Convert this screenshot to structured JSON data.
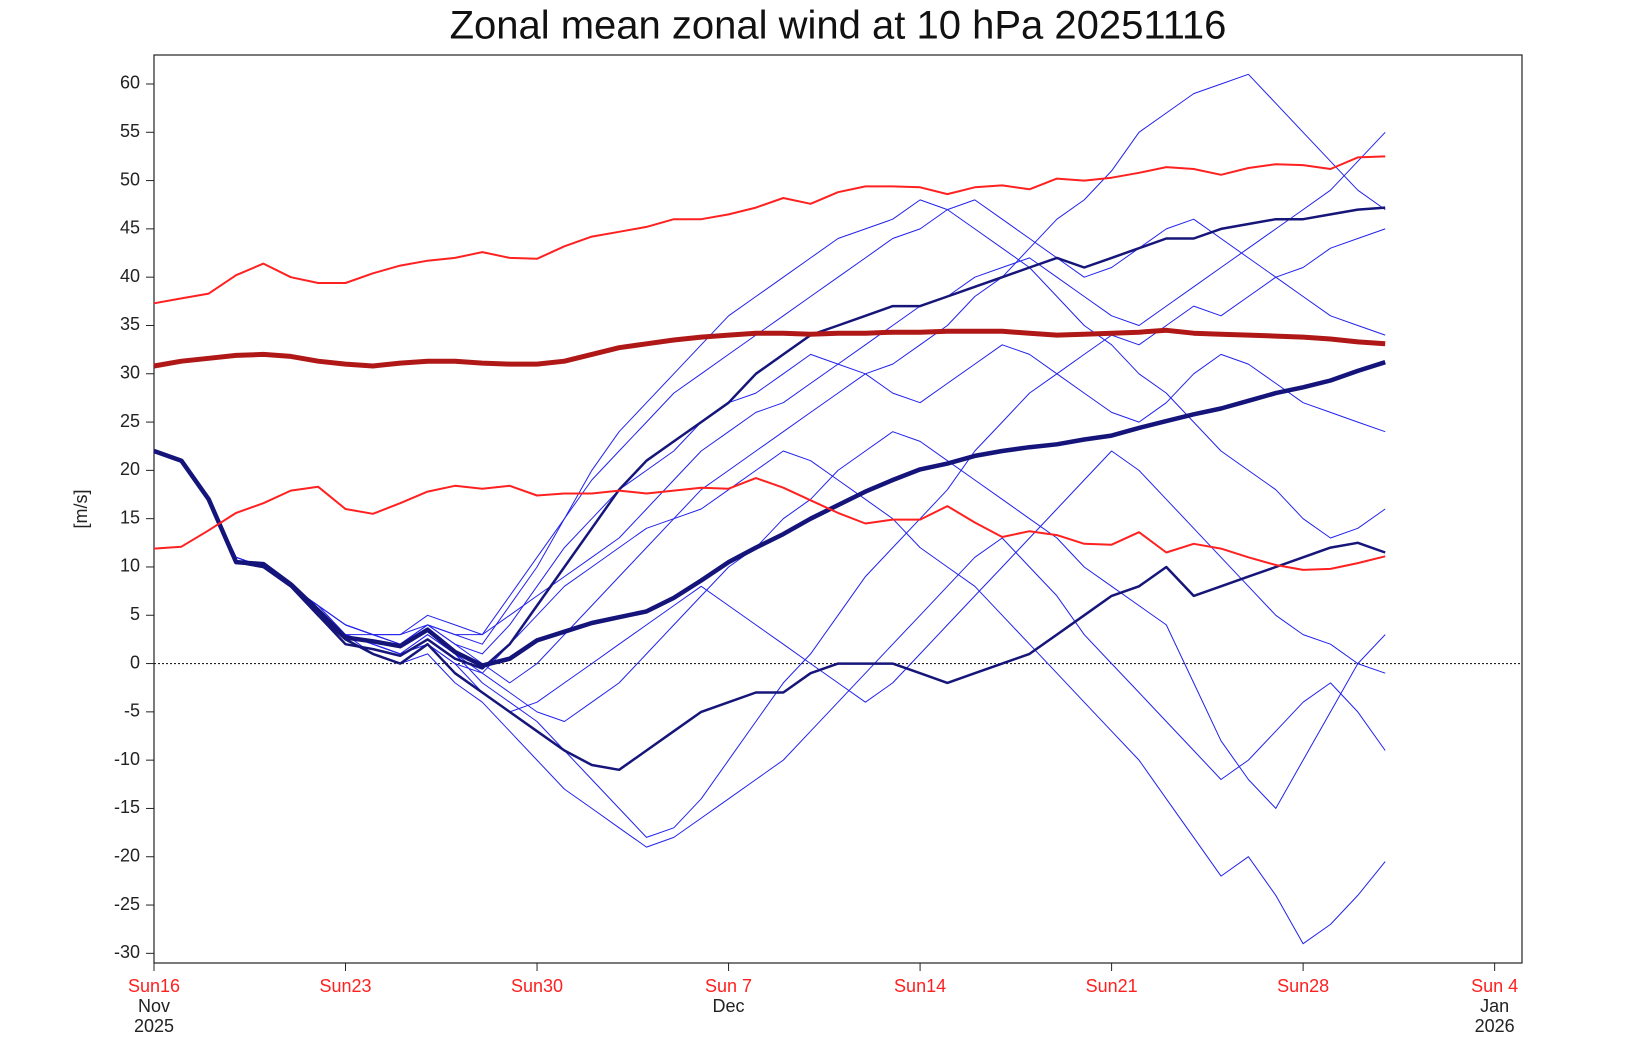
{
  "chart_data": {
    "type": "line",
    "title": "Zonal mean zonal wind at 10 hPa 20251116",
    "y_label": "[m/s]",
    "x": [
      "2025-11-16",
      "2025-11-17",
      "2025-11-18",
      "2025-11-19",
      "2025-11-20",
      "2025-11-21",
      "2025-11-22",
      "2025-11-23",
      "2025-11-24",
      "2025-11-25",
      "2025-11-26",
      "2025-11-27",
      "2025-11-28",
      "2025-11-29",
      "2025-11-30",
      "2025-12-01",
      "2025-12-02",
      "2025-12-03",
      "2025-12-04",
      "2025-12-05",
      "2025-12-06",
      "2025-12-07",
      "2025-12-08",
      "2025-12-09",
      "2025-12-10",
      "2025-12-11",
      "2025-12-12",
      "2025-12-13",
      "2025-12-14",
      "2025-12-15",
      "2025-12-16",
      "2025-12-17",
      "2025-12-18",
      "2025-12-19",
      "2025-12-20",
      "2025-12-21",
      "2025-12-22",
      "2025-12-23",
      "2025-12-24",
      "2025-12-25",
      "2025-12-26",
      "2025-12-27",
      "2025-12-28",
      "2025-12-29",
      "2025-12-30",
      "2025-12-31"
    ],
    "xlim": [
      "2025-11-16",
      "2026-01-05"
    ],
    "xticks": [
      {
        "value": "2025-11-16",
        "label": [
          "Sun16",
          "Nov",
          "2025"
        ]
      },
      {
        "value": "2025-11-23",
        "label": [
          "Sun23"
        ]
      },
      {
        "value": "2025-11-30",
        "label": [
          "Sun30"
        ]
      },
      {
        "value": "2025-12-07",
        "label": [
          "Sun 7",
          "Dec"
        ]
      },
      {
        "value": "2025-12-14",
        "label": [
          "Sun14"
        ]
      },
      {
        "value": "2025-12-21",
        "label": [
          "Sun21"
        ]
      },
      {
        "value": "2025-12-28",
        "label": [
          "Sun28"
        ]
      },
      {
        "value": "2026-01-04",
        "label": [
          "Sun 4",
          "Jan",
          "2026"
        ]
      }
    ],
    "xtick_day_color": "#ff2020",
    "ylim": [
      -31,
      63
    ],
    "yticks": [
      -30,
      -25,
      -20,
      -15,
      -10,
      -5,
      0,
      5,
      10,
      15,
      20,
      25,
      30,
      35,
      40,
      45,
      50,
      55,
      60
    ],
    "zero_line": true,
    "series": [
      {
        "color": "#2222ee",
        "width": 1,
        "values": [
          22,
          21,
          17,
          11,
          10,
          8,
          6,
          3,
          2,
          1,
          3,
          1,
          -2,
          -4,
          -6,
          -9,
          -12,
          -15,
          -18,
          -17,
          -14,
          -10,
          -6,
          -2,
          1,
          5,
          9,
          12,
          15,
          18,
          22,
          25,
          28,
          30,
          32,
          34,
          33,
          35,
          37,
          36,
          38,
          40,
          41,
          43,
          44,
          45
        ]
      },
      {
        "color": "#2222ee",
        "width": 1,
        "values": [
          22,
          21,
          17,
          11,
          10,
          8,
          5,
          3,
          3,
          2,
          4,
          3,
          2,
          6,
          10,
          15,
          20,
          24,
          27,
          30,
          33,
          36,
          38,
          40,
          42,
          44,
          45,
          46,
          48,
          47,
          45,
          43,
          41,
          38,
          35,
          33,
          30,
          28,
          25,
          22,
          20,
          18,
          15,
          13,
          14,
          16
        ]
      },
      {
        "color": "#2222ee",
        "width": 1,
        "values": [
          22,
          21,
          17,
          11,
          10,
          8,
          6,
          4,
          3,
          3,
          4,
          2,
          0,
          -2,
          0,
          3,
          6,
          9,
          12,
          15,
          18,
          20,
          22,
          24,
          26,
          28,
          30,
          31,
          33,
          35,
          38,
          40,
          43,
          46,
          48,
          51,
          55,
          57,
          59,
          60,
          61,
          58,
          55,
          52,
          49,
          47
        ]
      },
      {
        "color": "#2222ee",
        "width": 1,
        "values": [
          22,
          21,
          17,
          11,
          10,
          8,
          5,
          3,
          2,
          1,
          2,
          0,
          -1,
          2,
          5,
          8,
          10,
          12,
          14,
          15,
          16,
          18,
          20,
          22,
          21,
          19,
          17,
          15,
          12,
          10,
          8,
          5,
          2,
          -1,
          -4,
          -7,
          -10,
          -14,
          -18,
          -22,
          -20,
          -24,
          -29,
          -27,
          -24,
          -20.5
        ]
      },
      {
        "color": "#2222ee",
        "width": 1,
        "values": [
          22,
          21,
          17,
          11,
          10,
          8,
          6,
          4,
          3,
          2,
          4,
          2,
          1,
          4,
          8,
          12,
          15,
          18,
          20,
          22,
          25,
          27,
          28,
          30,
          32,
          31,
          30,
          28,
          27,
          29,
          31,
          33,
          32,
          30,
          28,
          26,
          25,
          27,
          30,
          32,
          31,
          29,
          27,
          26,
          25,
          24
        ]
      },
      {
        "color": "#2222ee",
        "width": 1,
        "values": [
          22,
          21,
          17,
          11,
          10,
          8,
          5,
          3,
          1,
          0,
          1,
          -2,
          -4,
          -7,
          -10,
          -13,
          -15,
          -17,
          -19,
          -18,
          -16,
          -14,
          -12,
          -10,
          -7,
          -4,
          -1,
          2,
          5,
          8,
          11,
          13,
          10,
          7,
          3,
          0,
          -3,
          -6,
          -9,
          -12,
          -10,
          -7,
          -4,
          -2,
          -5,
          -9
        ]
      },
      {
        "color": "#2222ee",
        "width": 1,
        "values": [
          22,
          21,
          17,
          11,
          10,
          8,
          6,
          4,
          3,
          2,
          4,
          3,
          3,
          5,
          7,
          9,
          11,
          13,
          16,
          19,
          22,
          24,
          26,
          27,
          29,
          31,
          33,
          35,
          37,
          38,
          40,
          41,
          42,
          40,
          38,
          36,
          35,
          37,
          39,
          41,
          43,
          45,
          47,
          49,
          52,
          55
        ]
      },
      {
        "color": "#2222ee",
        "width": 1,
        "values": [
          22,
          21,
          17,
          11,
          10,
          8,
          5,
          3,
          2,
          1,
          2,
          0,
          -3,
          -5,
          -4,
          -2,
          0,
          2,
          4,
          6,
          8,
          6,
          4,
          2,
          0,
          -2,
          -4,
          -2,
          1,
          4,
          7,
          10,
          13,
          16,
          19,
          22,
          20,
          17,
          14,
          11,
          8,
          5,
          3,
          2,
          0,
          -1
        ]
      },
      {
        "color": "#2222ee",
        "width": 1,
        "values": [
          22,
          21,
          17,
          11,
          10,
          8,
          6,
          4,
          3,
          3,
          5,
          4,
          3,
          7,
          11,
          15,
          19,
          22,
          25,
          28,
          30,
          32,
          34,
          36,
          38,
          40,
          42,
          44,
          45,
          47,
          48,
          46,
          44,
          42,
          40,
          41,
          43,
          45,
          46,
          44,
          42,
          40,
          38,
          36,
          35,
          34
        ]
      },
      {
        "color": "#2222ee",
        "width": 1,
        "values": [
          22,
          21,
          17,
          11,
          10,
          8,
          5,
          3,
          2,
          1,
          3,
          1,
          -1,
          -3,
          -5,
          -6,
          -4,
          -2,
          1,
          4,
          7,
          10,
          12,
          15,
          17,
          20,
          22,
          24,
          23,
          21,
          19,
          17,
          15,
          13,
          10,
          8,
          6,
          4,
          -2,
          -8,
          -12,
          -15,
          -10,
          -5,
          0,
          3
        ]
      },
      {
        "color": "#16167a",
        "width": 2.5,
        "values": [
          22,
          21,
          17,
          10.5,
          10,
          8,
          5,
          2,
          1.5,
          0.8,
          2.5,
          0.5,
          -0.5,
          2,
          6,
          10,
          14,
          18,
          21,
          23,
          25,
          27,
          30,
          32,
          34,
          35,
          36,
          37,
          37,
          38,
          39,
          40,
          41,
          42,
          41,
          42,
          43,
          44,
          44,
          45,
          45.5,
          46,
          46,
          46.5,
          47,
          47.2
        ]
      },
      {
        "color": "#16167a",
        "width": 2.5,
        "values": [
          22,
          21,
          17,
          10.5,
          10,
          8,
          5,
          2.5,
          1,
          0,
          2,
          -1,
          -3,
          -5,
          -7,
          -9,
          -10.5,
          -11,
          -9,
          -7,
          -5,
          -4,
          -3,
          -3,
          -1,
          0,
          0,
          0,
          -1,
          -2,
          -1,
          0,
          1,
          3,
          5,
          7,
          8,
          10,
          7,
          8,
          9,
          10,
          11,
          12,
          12.5,
          11.5
        ]
      },
      {
        "color": "#14147a",
        "width": 4.5,
        "values": [
          22,
          21,
          17,
          10.5,
          10.3,
          8.2,
          5.5,
          2.7,
          2.3,
          1.8,
          3.5,
          1.2,
          -0.2,
          0.5,
          2.4,
          3.3,
          4.2,
          4.8,
          5.4,
          6.8,
          8.6,
          10.5,
          12,
          13.4,
          15,
          16.4,
          17.8,
          19,
          20.1,
          20.7,
          21.5,
          22,
          22.4,
          22.7,
          23.2,
          23.6,
          24.4,
          25.1,
          25.8,
          26.4,
          27.2,
          28,
          28.6,
          29.3,
          30.3,
          31.2
        ]
      },
      {
        "color": "#ff2020",
        "width": 2,
        "values": [
          37.3,
          37.8,
          38.3,
          40.2,
          41.4,
          40,
          39.4,
          39.4,
          40.4,
          41.2,
          41.7,
          42,
          42.6,
          42,
          41.9,
          43.2,
          44.2,
          44.7,
          45.2,
          46,
          46,
          46.5,
          47.2,
          48.2,
          47.6,
          48.8,
          49.4,
          49.4,
          49.3,
          48.6,
          49.3,
          49.5,
          49.1,
          50.2,
          50,
          50.3,
          50.8,
          51.4,
          51.2,
          50.6,
          51.3,
          51.7,
          51.6,
          51.2,
          52.4,
          52.5
        ]
      },
      {
        "color": "#ff2020",
        "width": 2,
        "values": [
          11.9,
          12.1,
          13.8,
          15.6,
          16.6,
          17.9,
          18.3,
          16,
          15.5,
          16.6,
          17.8,
          18.4,
          18.1,
          18.4,
          17.4,
          17.6,
          17.6,
          17.9,
          17.6,
          17.9,
          18.2,
          18.1,
          19.2,
          18.2,
          16.9,
          15.6,
          14.5,
          14.9,
          14.9,
          16.3,
          14.6,
          13.1,
          13.7,
          13.3,
          12.4,
          12.3,
          13.6,
          11.5,
          12.4,
          11.9,
          11,
          10.2,
          9.7,
          9.8,
          10.4,
          11.1
        ]
      },
      {
        "color": "#b01818",
        "width": 5,
        "values": [
          30.8,
          31.3,
          31.6,
          31.9,
          32,
          31.8,
          31.3,
          31,
          30.8,
          31.1,
          31.3,
          31.3,
          31.1,
          31,
          31,
          31.3,
          32,
          32.7,
          33.1,
          33.5,
          33.8,
          34,
          34.2,
          34.2,
          34.1,
          34.2,
          34.2,
          34.3,
          34.3,
          34.4,
          34.4,
          34.4,
          34.2,
          34,
          34.1,
          34.2,
          34.3,
          34.5,
          34.2,
          34.1,
          34,
          33.9,
          33.8,
          33.6,
          33.3,
          33.1
        ]
      }
    ]
  }
}
